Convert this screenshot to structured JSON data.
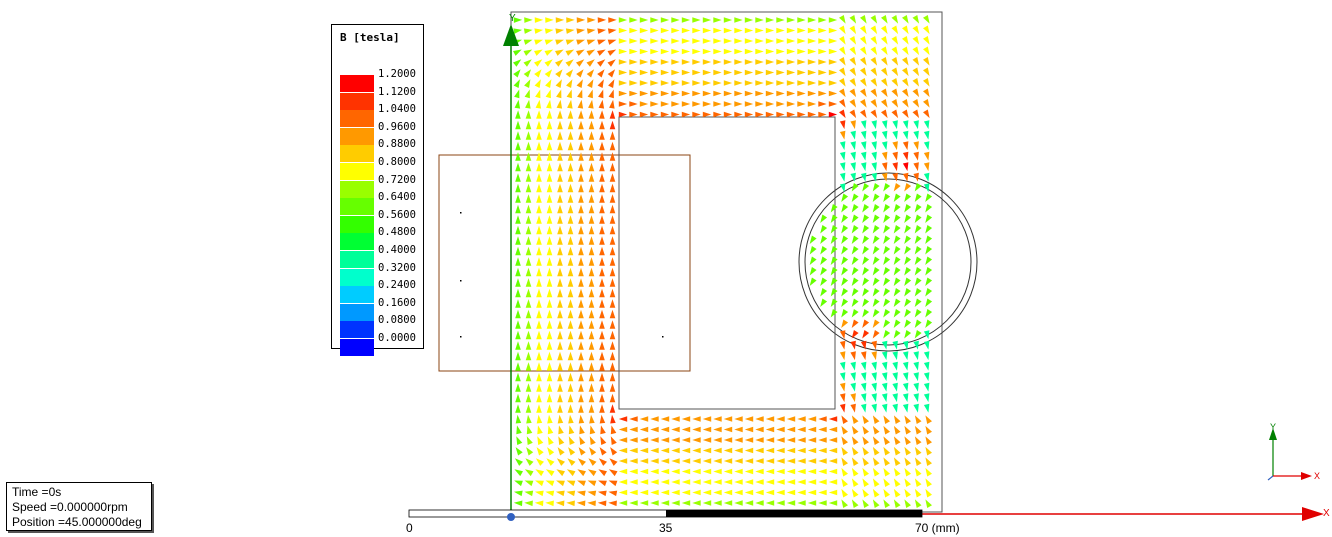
{
  "legend": {
    "title": "B [tesla]",
    "entries": [
      {
        "label": "1.2000",
        "color": "#ff0000"
      },
      {
        "label": "1.1200",
        "color": "#ff3300"
      },
      {
        "label": "1.0400",
        "color": "#ff6600"
      },
      {
        "label": "0.9600",
        "color": "#ff9900"
      },
      {
        "label": "0.8800",
        "color": "#ffcc00"
      },
      {
        "label": "0.8000",
        "color": "#ffff00"
      },
      {
        "label": "0.7200",
        "color": "#99ff00"
      },
      {
        "label": "0.6400",
        "color": "#66ff00"
      },
      {
        "label": "0.5600",
        "color": "#33ff00"
      },
      {
        "label": "0.4800",
        "color": "#00ff33"
      },
      {
        "label": "0.4000",
        "color": "#00ff99"
      },
      {
        "label": "0.3200",
        "color": "#00ffcc"
      },
      {
        "label": "0.2400",
        "color": "#00ccff"
      },
      {
        "label": "0.1600",
        "color": "#0099ff"
      },
      {
        "label": "0.0800",
        "color": "#0033ff"
      },
      {
        "label": "0.0000",
        "color": "#0000ff"
      }
    ]
  },
  "status": {
    "time": "Time    =0s",
    "speed": "Speed    =0.000000rpm",
    "position": "Position =45.000000deg"
  },
  "ruler": {
    "tick0": "0",
    "tick1": "35",
    "tick2": "70 (mm)"
  },
  "axes": {
    "y": "Y",
    "x": "X"
  }
}
